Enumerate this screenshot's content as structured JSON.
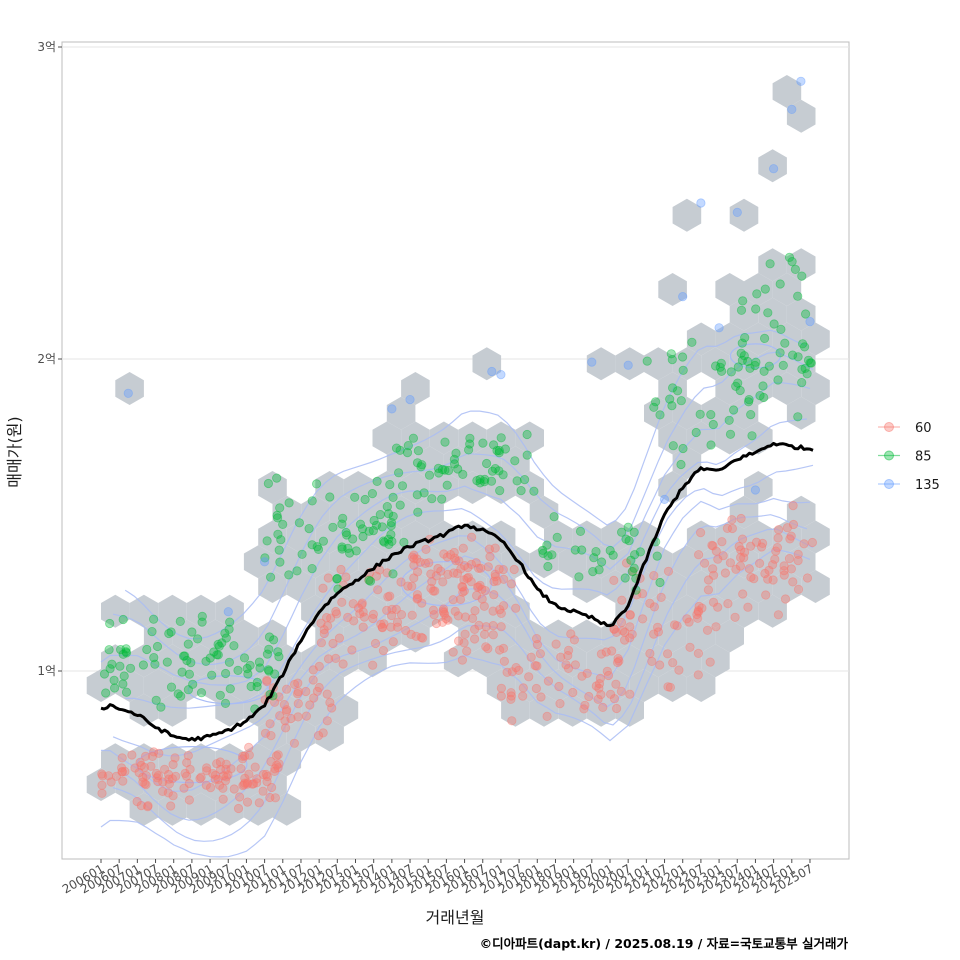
{
  "chart_data": {
    "type": "scatter",
    "xlabel": "거래년월",
    "ylabel": "매매가(원)",
    "caption": "©디아파트(dapt.kr) / 2025.08.19 / 자료=국토교통부 실거래가",
    "x_range": [
      "2006-01",
      "2025-08"
    ],
    "ylim": [
      0.42,
      3.02
    ],
    "y_ticks": [
      {
        "value": 1,
        "label": "1억"
      },
      {
        "value": 2,
        "label": "2억"
      },
      {
        "value": 3,
        "label": "3억"
      }
    ],
    "x_ticks": [
      "200601",
      "200607",
      "200701",
      "200707",
      "200801",
      "200807",
      "200901",
      "200907",
      "201001",
      "201007",
      "201101",
      "201107",
      "201201",
      "201207",
      "201301",
      "201307",
      "201401",
      "201407",
      "201501",
      "201507",
      "201601",
      "201607",
      "201701",
      "201707",
      "201801",
      "201807",
      "201901",
      "201907",
      "202001",
      "202007",
      "202101",
      "202107",
      "202201",
      "202207",
      "202301",
      "202307",
      "202401",
      "202407",
      "202501",
      "202507"
    ],
    "legend": {
      "position": "right",
      "entries": [
        {
          "label": "60",
          "color": "#F8766D"
        },
        {
          "label": "85",
          "color": "#00BA38"
        },
        {
          "label": "135",
          "color": "#619CFF"
        }
      ]
    },
    "grid": true,
    "background_hexbin": true,
    "density_contours": true,
    "line_series": {
      "name": "",
      "color": "#000000",
      "points": [
        [
          "2006-01",
          0.88
        ],
        [
          "2006-04",
          0.89
        ],
        [
          "2006-07",
          0.88
        ],
        [
          "2007-01",
          0.86
        ],
        [
          "2007-07",
          0.82
        ],
        [
          "2008-01",
          0.79
        ],
        [
          "2008-07",
          0.78
        ],
        [
          "2009-01",
          0.79
        ],
        [
          "2009-07",
          0.81
        ],
        [
          "2010-01",
          0.84
        ],
        [
          "2010-07",
          0.89
        ],
        [
          "2011-01",
          0.99
        ],
        [
          "2011-07",
          1.1
        ],
        [
          "2012-01",
          1.19
        ],
        [
          "2012-07",
          1.25
        ],
        [
          "2013-01",
          1.29
        ],
        [
          "2013-07",
          1.33
        ],
        [
          "2014-01",
          1.37
        ],
        [
          "2014-07",
          1.4
        ],
        [
          "2015-01",
          1.42
        ],
        [
          "2015-07",
          1.44
        ],
        [
          "2016-01",
          1.47
        ],
        [
          "2016-07",
          1.45
        ],
        [
          "2017-01",
          1.42
        ],
        [
          "2017-07",
          1.35
        ],
        [
          "2018-01",
          1.26
        ],
        [
          "2018-07",
          1.21
        ],
        [
          "2019-01",
          1.19
        ],
        [
          "2019-07",
          1.17
        ],
        [
          "2020-01",
          1.14
        ],
        [
          "2020-07",
          1.21
        ],
        [
          "2021-01",
          1.36
        ],
        [
          "2021-07",
          1.5
        ],
        [
          "2022-01",
          1.59
        ],
        [
          "2022-07",
          1.65
        ],
        [
          "2023-01",
          1.64
        ],
        [
          "2023-07",
          1.68
        ],
        [
          "2024-01",
          1.7
        ],
        [
          "2024-07",
          1.73
        ],
        [
          "2025-01",
          1.72
        ],
        [
          "2025-08",
          1.71
        ]
      ]
    },
    "series": [
      {
        "name": "60",
        "color": "#F8766D",
        "clusters": [
          {
            "x": [
              "2006-01",
              "2010-12"
            ],
            "y": [
              0.54,
              0.78
            ],
            "count": 120
          },
          {
            "x": [
              "2010-07",
              "2012-06"
            ],
            "y": [
              0.75,
              1.05
            ],
            "count": 40
          },
          {
            "x": [
              "2012-01",
              "2017-06"
            ],
            "y": [
              1.0,
              1.38
            ],
            "count": 130
          },
          {
            "x": [
              "2014-06",
              "2016-12"
            ],
            "y": [
              1.2,
              1.45
            ],
            "count": 50
          },
          {
            "x": [
              "2017-01",
              "2020-06"
            ],
            "y": [
              0.82,
              1.15
            ],
            "count": 60
          },
          {
            "x": [
              "2020-01",
              "2022-12"
            ],
            "y": [
              0.9,
              1.4
            ],
            "count": 55
          },
          {
            "x": [
              "2022-06",
              "2025-08"
            ],
            "y": [
              1.15,
              1.55
            ],
            "count": 70
          }
        ]
      },
      {
        "name": "85",
        "color": "#00BA38",
        "clusters": [
          {
            "x": [
              "2006-01",
              "2010-12"
            ],
            "y": [
              0.86,
              1.2
            ],
            "count": 90
          },
          {
            "x": [
              "2010-07",
              "2014-06"
            ],
            "y": [
              1.25,
              1.65
            ],
            "count": 70
          },
          {
            "x": [
              "2014-01",
              "2017-12"
            ],
            "y": [
              1.5,
              1.78
            ],
            "count": 60
          },
          {
            "x": [
              "2018-01",
              "2021-06"
            ],
            "y": [
              1.25,
              1.5
            ],
            "count": 35
          },
          {
            "x": [
              "2021-01",
              "2023-12"
            ],
            "y": [
              1.6,
              2.1
            ],
            "count": 40
          },
          {
            "x": [
              "2023-06",
              "2025-08"
            ],
            "y": [
              1.75,
              2.35
            ],
            "count": 45
          }
        ]
      },
      {
        "name": "135",
        "color": "#619CFF",
        "points": [
          [
            "2006-10",
            1.89
          ],
          [
            "2009-07",
            1.19
          ],
          [
            "2010-07",
            1.35
          ],
          [
            "2014-01",
            1.84
          ],
          [
            "2014-07",
            1.87
          ],
          [
            "2016-10",
            1.96
          ],
          [
            "2017-01",
            1.95
          ],
          [
            "2019-07",
            1.99
          ],
          [
            "2020-07",
            1.98
          ],
          [
            "2021-07",
            1.55
          ],
          [
            "2022-01",
            2.2
          ],
          [
            "2022-07",
            2.5
          ],
          [
            "2023-01",
            2.1
          ],
          [
            "2023-07",
            2.47
          ],
          [
            "2024-01",
            1.58
          ],
          [
            "2024-07",
            2.61
          ],
          [
            "2025-01",
            2.8
          ],
          [
            "2025-04",
            2.89
          ],
          [
            "2025-07",
            2.12
          ]
        ]
      }
    ]
  }
}
